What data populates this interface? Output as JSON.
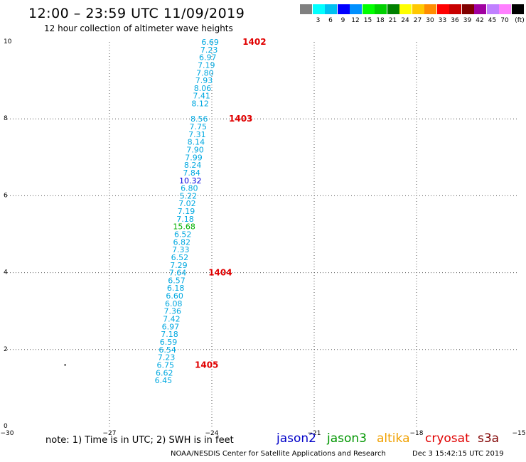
{
  "header": {
    "title": "12:00 – 23:59 UTC 11/09/2019",
    "subtitle": "12 hour collection of altimeter wave heights"
  },
  "legend": {
    "unit": "(ft)",
    "swatches": [
      {
        "color": "#808080",
        "label": ""
      },
      {
        "color": "#00ffff",
        "label": "3"
      },
      {
        "color": "#00c0f0",
        "label": "6"
      },
      {
        "color": "#0000ff",
        "label": "9"
      },
      {
        "color": "#0090ff",
        "label": "12"
      },
      {
        "color": "#00ff00",
        "label": "15"
      },
      {
        "color": "#00d000",
        "label": "18"
      },
      {
        "color": "#008000",
        "label": "21"
      },
      {
        "color": "#ffff00",
        "label": "24"
      },
      {
        "color": "#ffc800",
        "label": "27"
      },
      {
        "color": "#ff8c00",
        "label": "30"
      },
      {
        "color": "#ff0000",
        "label": "33"
      },
      {
        "color": "#c80000",
        "label": "36"
      },
      {
        "color": "#800000",
        "label": "39"
      },
      {
        "color": "#a000a0",
        "label": "42"
      },
      {
        "color": "#c080ff",
        "label": "45"
      },
      {
        "color": "#ff80ff",
        "label": "70"
      },
      {
        "color": "#000000",
        "label": ""
      }
    ]
  },
  "chart_data": {
    "type": "scatter",
    "title": "12 hour collection of altimeter wave heights",
    "xlim": [
      -30,
      -15
    ],
    "ylim": [
      0,
      10
    ],
    "xticks": [
      -30,
      -27,
      -24,
      -21,
      -18,
      -15
    ],
    "yticks": [
      0,
      2,
      4,
      6,
      8,
      10
    ],
    "grid": true,
    "points": [
      {
        "lon": -24.05,
        "lat": 10.0,
        "swh": "6.69",
        "color": "#00a8e0"
      },
      {
        "lon": -24.08,
        "lat": 9.8,
        "swh": "7.23",
        "color": "#00a8e0"
      },
      {
        "lon": -24.12,
        "lat": 9.6,
        "swh": "6.97",
        "color": "#00a8e0"
      },
      {
        "lon": -24.16,
        "lat": 9.4,
        "swh": "7.19",
        "color": "#00a8e0"
      },
      {
        "lon": -24.2,
        "lat": 9.2,
        "swh": "7.80",
        "color": "#00a8e0"
      },
      {
        "lon": -24.23,
        "lat": 9.0,
        "swh": "7.93",
        "color": "#00a8e0"
      },
      {
        "lon": -24.27,
        "lat": 8.8,
        "swh": "8.06",
        "color": "#00a8e0"
      },
      {
        "lon": -24.3,
        "lat": 8.6,
        "swh": "7.41",
        "color": "#00a8e0"
      },
      {
        "lon": -24.34,
        "lat": 8.4,
        "swh": "8.12",
        "color": "#00a8e0"
      },
      {
        "lon": -24.37,
        "lat": 8.0,
        "swh": "8.56",
        "color": "#00a8e0"
      },
      {
        "lon": -24.4,
        "lat": 7.8,
        "swh": "7.75",
        "color": "#00a8e0"
      },
      {
        "lon": -24.43,
        "lat": 7.6,
        "swh": "7.31",
        "color": "#00a8e0"
      },
      {
        "lon": -24.46,
        "lat": 7.4,
        "swh": "8.14",
        "color": "#00a8e0"
      },
      {
        "lon": -24.49,
        "lat": 7.2,
        "swh": "7.90",
        "color": "#00a8e0"
      },
      {
        "lon": -24.53,
        "lat": 7.0,
        "swh": "7.99",
        "color": "#00a8e0"
      },
      {
        "lon": -24.56,
        "lat": 6.8,
        "swh": "8.24",
        "color": "#00a8e0"
      },
      {
        "lon": -24.59,
        "lat": 6.6,
        "swh": "7.84",
        "color": "#00a8e0"
      },
      {
        "lon": -24.63,
        "lat": 6.4,
        "swh": "10.32",
        "color": "#0000e0"
      },
      {
        "lon": -24.66,
        "lat": 6.2,
        "swh": "6.80",
        "color": "#00a8e0"
      },
      {
        "lon": -24.69,
        "lat": 6.0,
        "swh": "5.22",
        "color": "#00a8e0"
      },
      {
        "lon": -24.72,
        "lat": 5.8,
        "swh": "7.02",
        "color": "#00a8e0"
      },
      {
        "lon": -24.75,
        "lat": 5.6,
        "swh": "7.19",
        "color": "#00a8e0"
      },
      {
        "lon": -24.78,
        "lat": 5.4,
        "swh": "7.18",
        "color": "#00a8e0"
      },
      {
        "lon": -24.81,
        "lat": 5.2,
        "swh": "15.68",
        "color": "#00b000"
      },
      {
        "lon": -24.85,
        "lat": 5.0,
        "swh": "6.52",
        "color": "#00a8e0"
      },
      {
        "lon": -24.88,
        "lat": 4.8,
        "swh": "6.82",
        "color": "#00a8e0"
      },
      {
        "lon": -24.91,
        "lat": 4.6,
        "swh": "7.33",
        "color": "#00a8e0"
      },
      {
        "lon": -24.94,
        "lat": 4.4,
        "swh": "6.52",
        "color": "#00a8e0"
      },
      {
        "lon": -24.97,
        "lat": 4.2,
        "swh": "7.29",
        "color": "#00a8e0"
      },
      {
        "lon": -25.0,
        "lat": 4.0,
        "swh": "7.64",
        "color": "#00a8e0"
      },
      {
        "lon": -25.03,
        "lat": 3.8,
        "swh": "6.57",
        "color": "#00a8e0"
      },
      {
        "lon": -25.06,
        "lat": 3.6,
        "swh": "6.18",
        "color": "#00a8e0"
      },
      {
        "lon": -25.09,
        "lat": 3.4,
        "swh": "6.60",
        "color": "#00a8e0"
      },
      {
        "lon": -25.12,
        "lat": 3.2,
        "swh": "6.08",
        "color": "#00a8e0"
      },
      {
        "lon": -25.15,
        "lat": 3.0,
        "swh": "7.36",
        "color": "#00a8e0"
      },
      {
        "lon": -25.18,
        "lat": 2.8,
        "swh": "7.42",
        "color": "#00a8e0"
      },
      {
        "lon": -25.21,
        "lat": 2.6,
        "swh": "6.97",
        "color": "#00a8e0"
      },
      {
        "lon": -25.24,
        "lat": 2.4,
        "swh": "7.18",
        "color": "#00a8e0"
      },
      {
        "lon": -25.27,
        "lat": 2.2,
        "swh": "6.59",
        "color": "#00a8e0"
      },
      {
        "lon": -25.3,
        "lat": 2.0,
        "swh": "6.54",
        "color": "#00a8e0"
      },
      {
        "lon": -25.33,
        "lat": 1.8,
        "swh": "7.23",
        "color": "#00a8e0"
      },
      {
        "lon": -25.36,
        "lat": 1.6,
        "swh": "6.75",
        "color": "#00a8e0"
      },
      {
        "lon": -25.39,
        "lat": 1.4,
        "swh": "6.62",
        "color": "#00a8e0"
      },
      {
        "lon": -25.42,
        "lat": 1.2,
        "swh": "6.45",
        "color": "#00a8e0"
      }
    ],
    "orbit_labels": [
      {
        "lon": -23.1,
        "lat": 10.0,
        "text": "1402"
      },
      {
        "lon": -23.5,
        "lat": 8.0,
        "text": "1403"
      },
      {
        "lon": -24.1,
        "lat": 4.0,
        "text": "1404"
      },
      {
        "lon": -24.5,
        "lat": 1.6,
        "text": "1405"
      }
    ],
    "markers": [
      {
        "lon": -28.3,
        "lat": 1.6
      }
    ]
  },
  "footer": {
    "note": "note:  1)  Time is in UTC;  2)  SWH is in feet",
    "satellites": [
      {
        "name": "jason2",
        "color": "#0000c8"
      },
      {
        "name": "jason3",
        "color": "#009600"
      },
      {
        "name": "altika",
        "color": "#f0a000"
      },
      {
        "name": "cryosat",
        "color": "#e00000"
      },
      {
        "name": "s3a",
        "color": "#800000"
      }
    ],
    "credit": "NOAA/NESDIS Center for Satellite Applications and Research",
    "timestamp": "Dec  3 15:42:15 UTC 2019"
  }
}
